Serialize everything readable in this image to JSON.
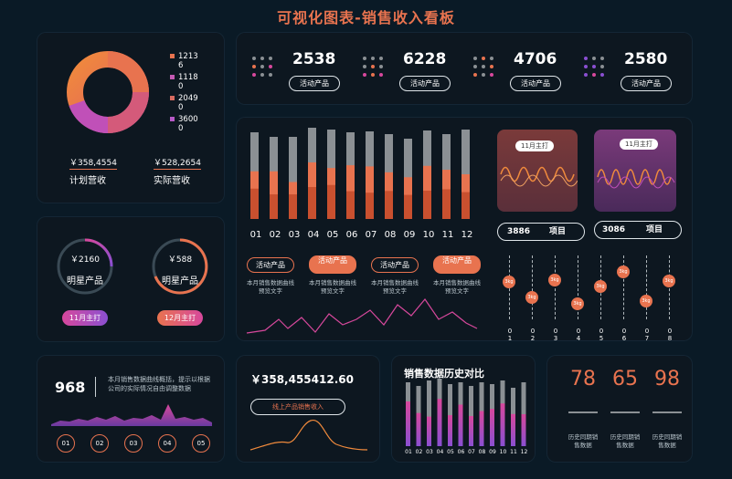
{
  "header": {
    "title": "可视化图表-销售收入看板"
  },
  "donut": {
    "legend": [
      "1213\n6",
      "1118\n0",
      "2049\n0",
      "3600\n0"
    ],
    "legend_colors": [
      "#e8734f",
      "#c45ab3",
      "#d86a5f",
      "#b85ac8"
    ],
    "plan_value": "￥358,4554",
    "plan_label": "计划营收",
    "actual_value": "￥528,2654",
    "actual_label": "实际营收"
  },
  "stats": [
    {
      "value": "2538",
      "label": "活动产品"
    },
    {
      "value": "6228",
      "label": "活动产品"
    },
    {
      "value": "4706",
      "label": "活动产品"
    },
    {
      "value": "2580",
      "label": "活动产品"
    }
  ],
  "stars": {
    "left": {
      "value": "￥2160",
      "label": "明星产品",
      "button": "11月主打"
    },
    "right": {
      "value": "￥588",
      "label": "明星产品",
      "button": "12月主打"
    }
  },
  "main_bars": {
    "categories": [
      "01",
      "02",
      "03",
      "04",
      "05",
      "06",
      "07",
      "08",
      "09",
      "10",
      "11",
      "12"
    ],
    "tags": [
      "活动产品",
      "活动产品",
      "活动产品",
      "活动产品"
    ],
    "notes": [
      "本月销售数据曲线预览文字",
      "本月销售数据曲线预览文字",
      "本月销售数据曲线预览文字",
      "本月销售数据曲线预览文字"
    ]
  },
  "wave_cards": [
    {
      "bubble": "11月主打",
      "value": "3886",
      "label": "项目"
    },
    {
      "bubble": "11月主打",
      "value": "3086",
      "label": "项目"
    }
  ],
  "sliders": {
    "ticks": [
      "0\n1",
      "0\n2",
      "0\n3",
      "0\n4",
      "0\n5",
      "0\n6",
      "0\n7",
      "0\n8"
    ],
    "knob_labels": [
      "3kg",
      "3kg",
      "3kg",
      "3kg",
      "3kg",
      "3kg",
      "3kg",
      "3kg"
    ],
    "levels": [
      0.32,
      0.55,
      0.28,
      0.65,
      0.38,
      0.15,
      0.62,
      0.3
    ]
  },
  "bottom1": {
    "value": "968",
    "text": "本月销售数据曲线概括，提示以根据公司的实际情况自由调整数据",
    "buttons": [
      "01",
      "02",
      "03",
      "04",
      "05"
    ]
  },
  "bottom2": {
    "value": "￥358,455412.60",
    "button": "线上产品销售收入"
  },
  "history": {
    "title": "销售数据历史对比",
    "categories": [
      "01",
      "02",
      "03",
      "04",
      "05",
      "06",
      "07",
      "08",
      "09",
      "10",
      "11",
      "12"
    ]
  },
  "kpis": [
    {
      "value": "78",
      "label": "历史同期销售数据"
    },
    {
      "value": "65",
      "label": "历史同期销售数据"
    },
    {
      "value": "98",
      "label": "历史同期销售数据"
    }
  ],
  "colors": {
    "accent": "#e8734f",
    "pink": "#d7489c",
    "purple": "#8a4fd1",
    "grey": "#8b9094"
  }
}
